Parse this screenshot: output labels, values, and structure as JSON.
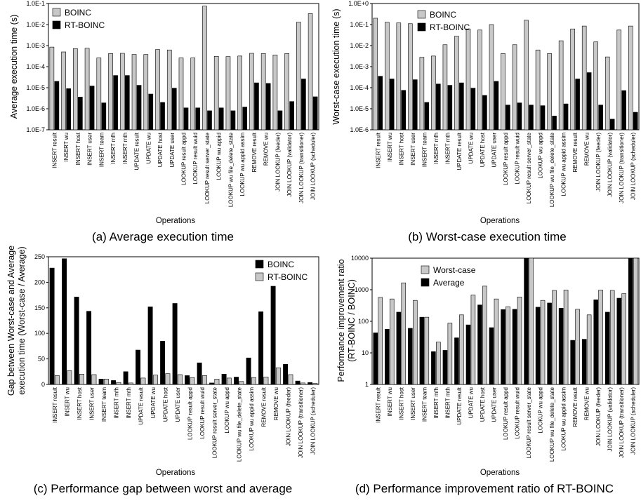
{
  "figure": {
    "colors": {
      "boinc": "#c8c8c8",
      "rt_boinc": "#000000",
      "frame": "#000000"
    }
  },
  "chart_data": [
    {
      "type": "bar",
      "caption": "(a) Average execution time",
      "xlabel": "Operations",
      "ylabel": "Average execution time (s)",
      "scale": "log",
      "ylim": [
        1e-07,
        0.1
      ],
      "yticks": [
        "1.0E-7",
        "1.0E-6",
        "1.0E-5",
        "1.0E-4",
        "1.0E-3",
        "1.0E-2",
        "1.0E-1"
      ],
      "legend_position": "top-left",
      "categories": [
        "INSERT result",
        "INSERT wu",
        "INSERT host",
        "INSERT user",
        "INSERT team",
        "INSERT mfh",
        "INSERT mth",
        "UPDATE result",
        "UPDATE wu",
        "UPDATE host",
        "UPDATE user",
        "LOOKUP result appd",
        "LOOKUP result wuid",
        "LOOKUP result server_state",
        "LOOKUP wu appid",
        "LOOKUP wu file_delete_state",
        "LOOKUP wu appid assim",
        "REMOVE result",
        "REMOVE wu",
        "JOIN LOOKUP (feeder)",
        "JOIN LOOKUP (validator)",
        "JOIN LOOKUP (transitioner)",
        "JOIN LOOKUP (scheduler)"
      ],
      "series": [
        {
          "name": "BOINC",
          "values": [
            0.00085,
            0.0005,
            0.00072,
            0.00075,
            0.00026,
            0.00042,
            0.00043,
            0.00038,
            0.00038,
            0.00065,
            0.00062,
            0.00026,
            0.00026,
            0.075,
            0.00031,
            0.0003,
            0.00032,
            0.00043,
            0.00042,
            0.00036,
            0.00042,
            0.013,
            0.033
          ]
        },
        {
          "name": "RT-BOINC",
          "values": [
            2e-05,
            9e-06,
            3.6e-06,
            1.2e-05,
            1.9e-06,
            3.8e-05,
            3.8e-05,
            1.3e-05,
            5e-06,
            2e-06,
            9.5e-06,
            1.1e-06,
            1.1e-06,
            8e-07,
            1.1e-06,
            8e-07,
            1.2e-06,
            1.7e-05,
            1.6e-05,
            8e-07,
            2.2e-06,
            2.6e-05,
            3.7e-06
          ]
        }
      ]
    },
    {
      "type": "bar",
      "caption": "(b) Worst-case execution time",
      "xlabel": "Operations",
      "ylabel": "Worst-case execution time (s)",
      "scale": "log",
      "ylim": [
        1e-06,
        1
      ],
      "yticks": [
        "1.0E-6",
        "1.0E-5",
        "1.0E-4",
        "1.0E-3",
        "1.0E-2",
        "1.0E-1",
        "1.0E+0"
      ],
      "legend_position": "top-left",
      "categories": [
        "INSERT result",
        "INSERT wu",
        "INSERT host",
        "INSERT user",
        "INSERT team",
        "INSERT mfh",
        "INSERT mth",
        "UPDATE result",
        "UPDATE wu",
        "UPDATE host",
        "UPDATE user",
        "LOOKUP result appd",
        "LOOKUP result wuid",
        "LOOKUP result server_state",
        "LOOKUP wu appd",
        "LOOKUP wu file_delete_state",
        "LOOKUP wu appid assim",
        "REMOVE result",
        "REMOVE wu",
        "JOIN LOOKUP (feeder)",
        "JOIN LOOKUP (validator)",
        "JOIN LOOKUP (transitioner)",
        "JOIN LOOKUP (scheduler)"
      ],
      "series": [
        {
          "name": "BOINC",
          "values": [
            0.2,
            0.13,
            0.12,
            0.11,
            0.0028,
            0.0032,
            0.011,
            0.028,
            0.062,
            0.055,
            0.1,
            0.0042,
            0.011,
            0.16,
            0.0062,
            0.0042,
            0.017,
            0.062,
            0.085,
            0.015,
            0.0029,
            0.055,
            0.085
          ]
        },
        {
          "name": "RT-BOINC",
          "values": [
            0.00035,
            0.00026,
            7.5e-05,
            0.00024,
            2e-05,
            0.00015,
            0.00013,
            0.00017,
            9.5e-05,
            4.3e-05,
            0.0002,
            1.5e-05,
            1.9e-05,
            1.5e-05,
            1.4e-05,
            4.5e-06,
            1.7e-05,
            0.00026,
            0.00052,
            1.5e-05,
            3.2e-06,
            7.3e-05,
            6.8e-06
          ]
        }
      ]
    },
    {
      "type": "bar",
      "caption": "(c) Performance gap between worst and average",
      "xlabel": "Operations",
      "ylabel": "Gap between Worst-case and Average execution time (Worst-case / Average)",
      "ylabel_lines": [
        "Gap between Worst-case and Average",
        "execution time (Worst-case / Average)"
      ],
      "scale": "linear",
      "ylim": [
        0,
        260
      ],
      "yticks": [
        "0",
        "50",
        "100",
        "150",
        "200",
        "250"
      ],
      "legend_position": "top-right",
      "categories": [
        "INSERT result",
        "INSERT wu",
        "INSERT host",
        "INSERT user",
        "INSERT team",
        "INSERT mfh",
        "INSERT mth",
        "UPDATE result",
        "UPDATE wu",
        "UPDATE host",
        "UPDATE user",
        "LOOKUP result appd",
        "LOOKUP result wuid",
        "LOOKUP result server_state",
        "LOOKUP wu appd",
        "LOOKUP wu file_delete_state",
        "LOOKUP wu appid assim",
        "REMOVE result",
        "REMOVE wu",
        "JOIN LOOKUP (feeder)",
        "JOIN LOOKUP (transitioner)",
        "JOIN LOOKUP (scheduler)"
      ],
      "series": [
        {
          "name": "BOINC",
          "values": [
            237,
            256,
            178,
            149,
            11,
            8,
            26,
            70,
            158,
            88,
            165,
            18,
            44,
            3,
            21,
            15,
            54,
            148,
            200,
            41,
            7,
            4
          ]
        },
        {
          "name": "RT-BOINC",
          "values": [
            18,
            28,
            21,
            20,
            11,
            4,
            3,
            13,
            19,
            22,
            20,
            14,
            18,
            11,
            13,
            6,
            14,
            15,
            34,
            20,
            3,
            2
          ]
        }
      ]
    },
    {
      "type": "bar",
      "caption": "(d) Performance improvement ratio of RT-BOINC",
      "xlabel": "Operations",
      "ylabel": "Performance improvement ratio (RT-BOINC / BOINC)",
      "ylabel_lines": [
        "Performance improvement ratio",
        "(RT-BOINC / BOINC)"
      ],
      "scale": "log",
      "ylim": [
        1,
        10000
      ],
      "yticks": [
        "1",
        "10",
        "100",
        "1000",
        "10000"
      ],
      "legend_position": "top-left",
      "categories": [
        "INSERT result",
        "INSERT wu",
        "INSERT host",
        "INSERT user",
        "INSERT team",
        "INSERT mfh",
        "INSERT mth",
        "UPDATE result",
        "UPDATE wu",
        "UPDATE host",
        "UPDATE user",
        "LOOKUP result appd",
        "LOOKUP result wuid",
        "LOOKUP result server_state",
        "LOOKUP wu appd",
        "LOOKUP wu file_delete_state",
        "LOOKUP wu appid assim",
        "REMOVE result",
        "REMOVE wu",
        "JOIN LOOKUP (feeder)",
        "JOIN LOOKUP (validator)",
        "JOIN LOOKUP (transitioner)",
        "JOIN LOOKUP (scheduler)"
      ],
      "series": [
        {
          "name": "Average",
          "values": [
            43,
            56,
            195,
            60,
            135,
            11,
            12,
            30,
            77,
            330,
            63,
            235,
            240,
            10000,
            280,
            380,
            260,
            25,
            27,
            480,
            195,
            540,
            10000
          ]
        },
        {
          "name": "Worst-case",
          "values": [
            570,
            510,
            1650,
            460,
            135,
            22,
            88,
            160,
            680,
            1300,
            510,
            290,
            590,
            10000,
            460,
            950,
            980,
            240,
            160,
            980,
            950,
            750,
            10000
          ]
        }
      ]
    }
  ]
}
